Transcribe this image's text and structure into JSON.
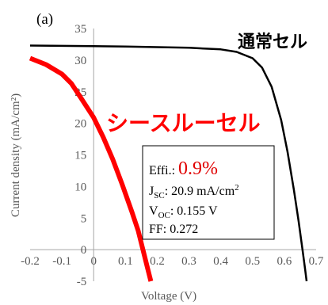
{
  "panel_label": "(a)",
  "colors": {
    "normal_cell": "#000000",
    "see_through_cell": "#ff0000",
    "axis": "#a6a6a6",
    "text": "#595959",
    "eff_value": "#e00000"
  },
  "chart_data": {
    "type": "line",
    "xlabel": "Voltage (V)",
    "ylabel": "Current density (mA/cm²)",
    "xlim": [
      -0.2,
      0.7
    ],
    "ylim": [
      -5,
      35
    ],
    "x_ticks": [
      -0.2,
      -0.1,
      0,
      0.1,
      0.2,
      0.3,
      0.4,
      0.5,
      0.6,
      0.7
    ],
    "y_ticks": [
      -5,
      0,
      5,
      10,
      15,
      20,
      25,
      30,
      35
    ],
    "x_tick_labels": [
      "-0.2",
      "-0.1",
      "0",
      "0.1",
      "0.2",
      "0.3",
      "0.4",
      "0.5",
      "0.6",
      "0.7"
    ],
    "y_tick_labels": [
      "-5",
      "0",
      "5",
      "10",
      "15",
      "20",
      "25",
      "30",
      "35"
    ],
    "grid": false,
    "series": [
      {
        "name": "通常セル",
        "color": "#000000",
        "points": [
          [
            -0.2,
            32.3
          ],
          [
            -0.1,
            32.25
          ],
          [
            0.0,
            32.2
          ],
          [
            0.1,
            32.15
          ],
          [
            0.2,
            32.05
          ],
          [
            0.3,
            31.95
          ],
          [
            0.4,
            31.7
          ],
          [
            0.45,
            31.3
          ],
          [
            0.5,
            30.3
          ],
          [
            0.53,
            28.8
          ],
          [
            0.56,
            25.8
          ],
          [
            0.59,
            20.5
          ],
          [
            0.61,
            15.5
          ],
          [
            0.63,
            9.5
          ],
          [
            0.645,
            4.5
          ],
          [
            0.657,
            0.0
          ],
          [
            0.665,
            -3.0
          ],
          [
            0.67,
            -5.0
          ]
        ]
      },
      {
        "name": "シースルーセル",
        "color": "#ff0000",
        "points": [
          [
            -0.2,
            30.3
          ],
          [
            -0.15,
            29.3
          ],
          [
            -0.1,
            27.8
          ],
          [
            -0.07,
            26.3
          ],
          [
            -0.04,
            24.0
          ],
          [
            0.0,
            20.9
          ],
          [
            0.03,
            17.8
          ],
          [
            0.06,
            14.3
          ],
          [
            0.09,
            10.3
          ],
          [
            0.12,
            6.0
          ],
          [
            0.14,
            3.0
          ],
          [
            0.155,
            0.0
          ],
          [
            0.17,
            -3.0
          ],
          [
            0.18,
            -5.0
          ]
        ]
      }
    ]
  },
  "annotations": {
    "eff_label": "Effi.: ",
    "eff_value": "0.9%",
    "jsc_main": "J",
    "jsc_sub": "SC",
    "jsc_rest": ": 20.9 mA/cm",
    "jsc_sup": "2",
    "voc_main": "V",
    "voc_sub": "OC",
    "voc_rest": ": 0.155 V",
    "ff_text": "FF: 0.272"
  }
}
